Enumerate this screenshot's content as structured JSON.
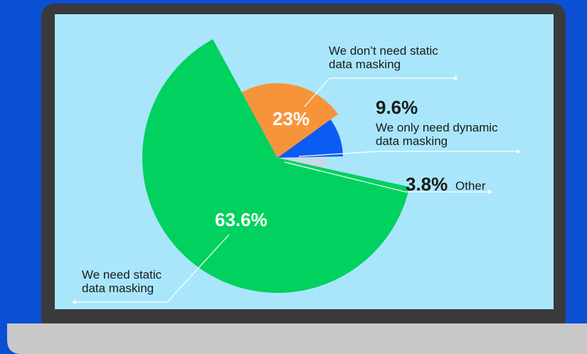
{
  "chart_data": {
    "type": "pie",
    "categories": [
      "We don’t need static data masking",
      "We only need dynamic data masking",
      "Other",
      "We need static data masking"
    ],
    "values": [
      23,
      9.6,
      3.8,
      63.6
    ],
    "value_labels": [
      "23%",
      "9.6%",
      "3.8%",
      "63.6%"
    ],
    "colors": [
      "#f7943a",
      "#0a5cf5",
      "#c9d9e6",
      "#00d15f"
    ]
  }
}
